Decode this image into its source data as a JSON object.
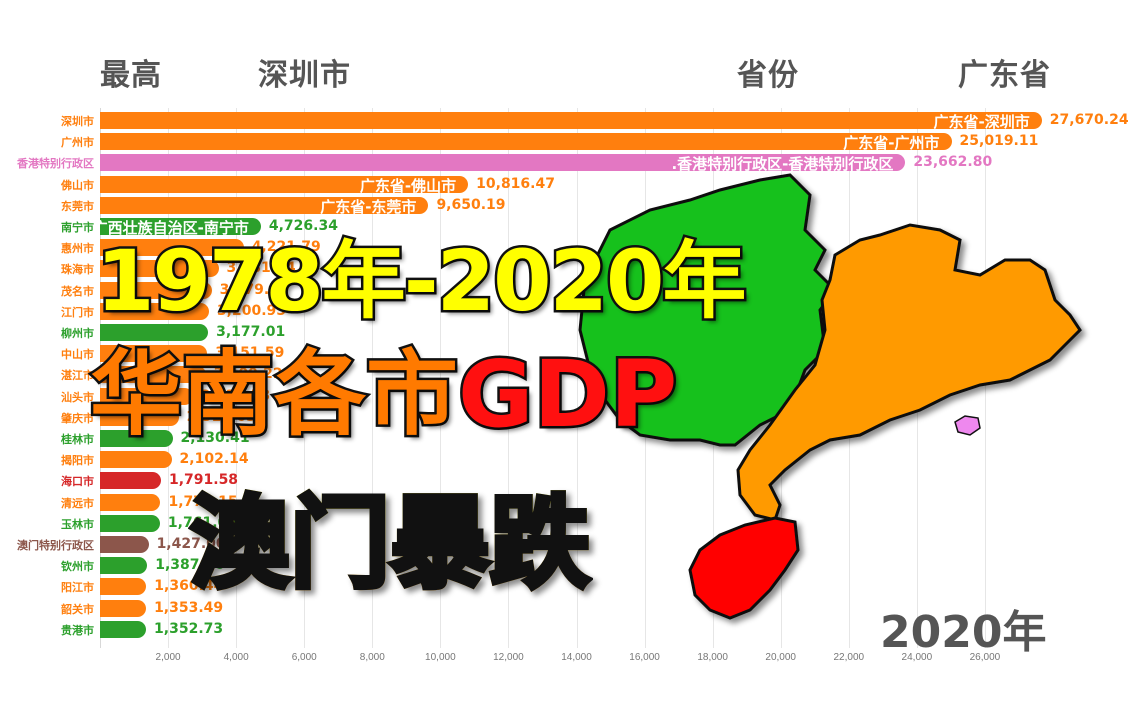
{
  "header": {
    "max_label": "最高",
    "max_value": "深圳市",
    "province_label": "省份",
    "province_value": "广东省"
  },
  "year_label": "2020年",
  "title": {
    "line1": "1978年-2020年",
    "line2_prefix": "华南各市",
    "line2_highlight": "GDP",
    "line3": "澳门暴跌"
  },
  "colors": {
    "guangdong": "#ff7f0e",
    "guangxi": "#2ca02c",
    "hongkong": "#e377c2",
    "hainan": "#d62728",
    "macau": "#8c564b",
    "map_guangxi": "#19c11a",
    "map_guangdong": "#ff9a00",
    "map_hainan": "#ff0000",
    "map_hongkong": "#ee88ee"
  },
  "chart_data": {
    "type": "bar",
    "orientation": "horizontal",
    "title": "1978年-2020年 华南各市GDP",
    "year": "2020年",
    "xlabel": "",
    "ylabel": "",
    "xlim": [
      0,
      28000
    ],
    "xticks": [
      "2,000",
      "4,000",
      "6,000",
      "8,000",
      "10,000",
      "12,000",
      "14,000",
      "16,000",
      "18,000",
      "20,000",
      "22,000",
      "24,000",
      "26,000"
    ],
    "grid": true,
    "rows": [
      {
        "name": "深圳市",
        "label": "广东省-深圳市",
        "value": 27670.24,
        "value_text": "27,670.24",
        "group": "guangdong"
      },
      {
        "name": "广州市",
        "label": "广东省-广州市",
        "value": 25019.11,
        "value_text": "25,019.11",
        "group": "guangdong"
      },
      {
        "name": "香港特别行政区",
        "label": ".香港特别行政区-香港特别行政区",
        "value": 23662.8,
        "value_text": "23,662.80",
        "group": "hongkong"
      },
      {
        "name": "佛山市",
        "label": "广东省-佛山市",
        "value": 10816.47,
        "value_text": "10,816.47",
        "group": "guangdong"
      },
      {
        "name": "东莞市",
        "label": "广东省-东莞市",
        "value": 9650.19,
        "value_text": "9,650.19",
        "group": "guangdong"
      },
      {
        "name": "南宁市",
        "label": "广西壮族自治区-南宁市",
        "value": 4726.34,
        "value_text": "4,726.34",
        "group": "guangxi"
      },
      {
        "name": "惠州市",
        "label": "",
        "value": 4221.79,
        "value_text": "4,221.79",
        "group": "guangdong"
      },
      {
        "name": "珠海市",
        "label": "",
        "value": 3481.94,
        "value_text": "3,481.94",
        "group": "guangdong"
      },
      {
        "name": "茂名市",
        "label": "",
        "value": 3279.31,
        "value_text": "3,279.31",
        "group": "guangdong"
      },
      {
        "name": "江门市",
        "label": "",
        "value": 3200.95,
        "value_text": "3,200.95",
        "group": "guangdong"
      },
      {
        "name": "柳州市",
        "label": "",
        "value": 3177.01,
        "value_text": "3,177.01",
        "group": "guangxi"
      },
      {
        "name": "中山市",
        "label": "",
        "value": 3151.59,
        "value_text": "3,151.59",
        "group": "guangdong"
      },
      {
        "name": "湛江市",
        "label": "",
        "value": 3100.22,
        "value_text": "3,100.22",
        "group": "guangdong"
      },
      {
        "name": "汕头市",
        "label": "",
        "value": 2730.58,
        "value_text": "2,730.58",
        "group": "guangdong"
      },
      {
        "name": "肇庆市",
        "label": "",
        "value": 2311.65,
        "value_text": "2,311.65",
        "group": "guangdong"
      },
      {
        "name": "桂林市",
        "label": "",
        "value": 2130.41,
        "value_text": "2,130.41",
        "group": "guangxi"
      },
      {
        "name": "揭阳市",
        "label": "",
        "value": 2102.14,
        "value_text": "2,102.14",
        "group": "guangdong"
      },
      {
        "name": "海口市",
        "label": "",
        "value": 1791.58,
        "value_text": "1,791.58",
        "group": "hainan"
      },
      {
        "name": "清远市",
        "label": "",
        "value": 1777.15,
        "value_text": "1,777.15",
        "group": "guangdong"
      },
      {
        "name": "玉林市",
        "label": "",
        "value": 1761.0,
        "value_text": "1,761.00",
        "group": "guangxi"
      },
      {
        "name": "澳门特别行政区",
        "label": "",
        "value": 1427.0,
        "value_text": "1,427.00",
        "group": "macau"
      },
      {
        "name": "钦州市",
        "label": "",
        "value": 1387.96,
        "value_text": "1,387.96",
        "group": "guangxi"
      },
      {
        "name": "阳江市",
        "label": "",
        "value": 1360.44,
        "value_text": "1,360.44",
        "group": "guangdong"
      },
      {
        "name": "韶关市",
        "label": "",
        "value": 1353.49,
        "value_text": "1,353.49",
        "group": "guangdong"
      },
      {
        "name": "贵港市",
        "label": "",
        "value": 1352.73,
        "value_text": "1,352.73",
        "group": "guangxi"
      }
    ]
  }
}
